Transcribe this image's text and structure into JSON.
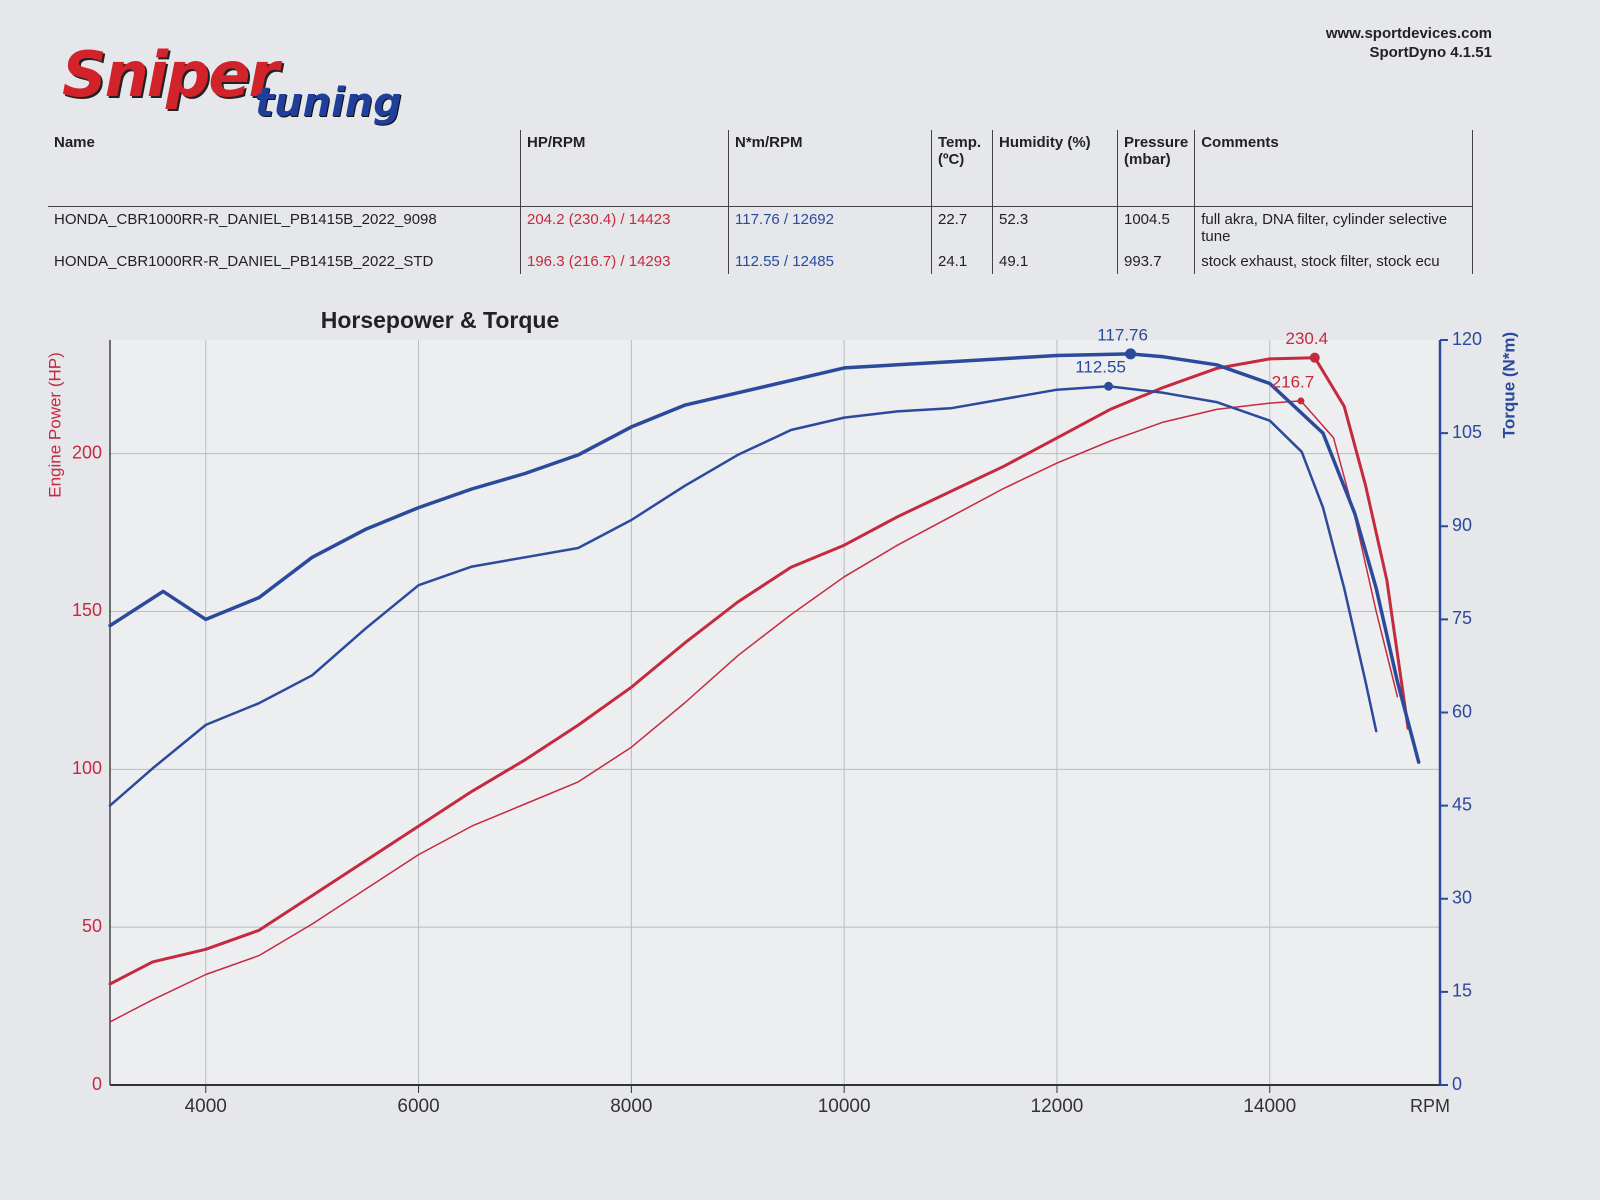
{
  "header": {
    "logo": {
      "line1": "Sniper",
      "line2": "tuning"
    },
    "website": "www.sportdevices.com",
    "software": "SportDyno 4.1.51"
  },
  "table": {
    "columns": [
      "Name",
      "HP/RPM",
      "N*m/RPM",
      "Temp. (ºC)",
      "Humidity (%)",
      "Pressure (mbar)",
      "Comments"
    ],
    "rows": [
      [
        "HONDA_CBR1000RR-R_DANIEL_PB1415B_2022_9098",
        "204.2 (230.4) / 14423",
        "117.76 / 12692",
        22.7,
        52.3,
        1004.5,
        "full akra, DNA filter, cylinder selective tune"
      ],
      [
        "HONDA_CBR1000RR-R_DANIEL_PB1415B_2022_STD",
        "196.3 (216.7) / 14293",
        "112.55 / 12485",
        24.1,
        49.1,
        993.7,
        "stock exhaust, stock filter, stock ecu"
      ]
    ]
  },
  "chart_data": {
    "type": "line",
    "title": "Horsepower & Torque",
    "ylabel": "Engine Power (HP)",
    "y2label": "Torque (N*m)",
    "xlabel": "RPM",
    "xlim": [
      3100,
      15600
    ],
    "xticks": [
      4000,
      6000,
      8000,
      10000,
      12000,
      14000
    ],
    "ylim": [
      0,
      236
    ],
    "yticks": [
      0,
      50,
      100,
      150,
      200
    ],
    "y2lim": [
      0,
      120
    ],
    "y2ticks": [
      0,
      15,
      30,
      45,
      60,
      75,
      90,
      105,
      120
    ],
    "grid": true,
    "series": [
      {
        "color": "#c52a3e",
        "width": 3,
        "axis": "y",
        "x": [
          3100,
          3500,
          4000,
          4500,
          5000,
          5500,
          6000,
          6500,
          7000,
          7500,
          8000,
          8500,
          9000,
          9500,
          10000,
          10500,
          11000,
          11500,
          12000,
          12500,
          13000,
          13500,
          14000,
          14423,
          14700,
          14900,
          15100,
          15300
        ],
        "values": [
          32,
          39,
          43,
          49,
          60,
          71,
          82,
          93,
          103,
          114,
          126,
          140,
          153,
          164,
          171,
          180,
          188,
          196,
          205,
          214,
          221,
          227,
          230,
          230.4,
          215,
          190,
          160,
          113
        ]
      },
      {
        "color": "#c52a3e",
        "width": 1.5,
        "axis": "y",
        "x": [
          3100,
          3500,
          4000,
          4500,
          5000,
          5500,
          6000,
          6500,
          7000,
          7500,
          8000,
          8500,
          9000,
          9500,
          10000,
          10500,
          11000,
          11500,
          12000,
          12500,
          13000,
          13500,
          14000,
          14293,
          14600,
          14800,
          15000,
          15200
        ],
        "values": [
          20,
          27,
          35,
          41,
          51,
          62,
          73,
          82,
          89,
          96,
          107,
          121,
          136,
          149,
          161,
          171,
          180,
          189,
          197,
          204,
          210,
          214,
          216,
          216.7,
          205,
          180,
          150,
          123
        ]
      },
      {
        "color": "#2b4a9c",
        "width": 3.5,
        "axis": "y2",
        "x": [
          3100,
          3600,
          4000,
          4500,
          5000,
          5500,
          6000,
          6500,
          7000,
          7500,
          8000,
          8500,
          9000,
          9500,
          10000,
          10500,
          11000,
          11500,
          12000,
          12692,
          13000,
          13500,
          14000,
          14500,
          14800,
          15000,
          15200,
          15400
        ],
        "values": [
          74,
          79.5,
          75,
          78.5,
          85,
          89.5,
          93,
          96,
          98.5,
          101.5,
          106,
          109.5,
          111.5,
          113.5,
          115.5,
          116,
          116.5,
          117,
          117.5,
          117.76,
          117.3,
          116,
          113,
          105,
          92,
          80,
          65,
          52
        ]
      },
      {
        "color": "#2b4a9c",
        "width": 2.5,
        "axis": "y2",
        "x": [
          3100,
          3500,
          4000,
          4500,
          5000,
          5500,
          6000,
          6500,
          7000,
          7500,
          8000,
          8500,
          9000,
          9500,
          10000,
          10500,
          11000,
          11500,
          12000,
          12485,
          13000,
          13500,
          14000,
          14300,
          14500,
          14700,
          14900,
          15000
        ],
        "values": [
          45,
          51,
          58,
          61.5,
          66,
          73.5,
          80.5,
          83.5,
          85,
          86.5,
          91,
          96.5,
          101.5,
          105.5,
          107.5,
          108.5,
          109,
          110.5,
          112,
          112.55,
          111.5,
          110,
          107,
          102,
          93,
          80,
          65,
          57
        ]
      }
    ],
    "annotations": [
      {
        "series": 0,
        "x": 14423,
        "y": 230.4
      },
      {
        "series": 1,
        "x": 14293,
        "y": 216.7
      },
      {
        "series": 2,
        "x": 12692,
        "y": 117.76
      },
      {
        "series": 3,
        "x": 12485,
        "y": 112.55
      }
    ]
  }
}
